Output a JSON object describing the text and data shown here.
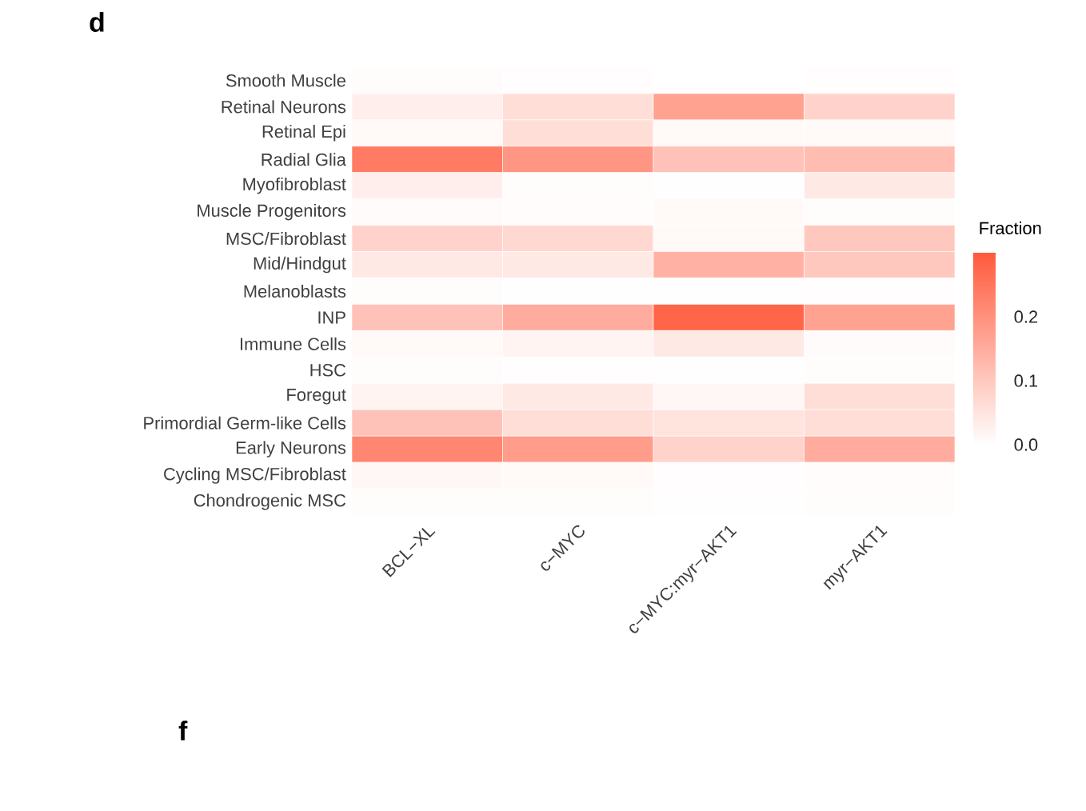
{
  "chart_data": {
    "type": "heatmap",
    "title": "d",
    "clabel": "Fraction",
    "annotations": [
      "f"
    ],
    "categories": [
      "BCL−XL",
      "c−MYC",
      "c−MYC:myr−AKT1",
      "myr−AKT1"
    ],
    "y_categories": [
      "Smooth Muscle",
      "Retinal Neurons",
      "Retinal Epi",
      "Radial Glia",
      "Myofibroblast",
      "Muscle Progenitors",
      "MSC/Fibroblast",
      "Mid/Hindgut",
      "Melanoblasts",
      "INP",
      "Immune Cells",
      "HSC",
      "Foregut",
      "Primordial Germ-like Cells",
      "Early Neurons",
      "Cycling MSC/Fibroblast",
      "Chondrogenic MSC"
    ],
    "cells": [
      [
        0.005,
        0.003,
        0.0,
        0.003
      ],
      [
        0.03,
        0.06,
        0.17,
        0.08
      ],
      [
        0.01,
        0.06,
        0.01,
        0.01
      ],
      [
        0.24,
        0.19,
        0.11,
        0.12
      ],
      [
        0.03,
        0.005,
        0.002,
        0.04
      ],
      [
        0.008,
        0.006,
        0.01,
        0.005
      ],
      [
        0.08,
        0.07,
        0.01,
        0.1
      ],
      [
        0.04,
        0.04,
        0.14,
        0.1
      ],
      [
        0.005,
        0.002,
        0.002,
        0.003
      ],
      [
        0.11,
        0.15,
        0.28,
        0.17
      ],
      [
        0.01,
        0.02,
        0.04,
        0.008
      ],
      [
        0.004,
        0.003,
        0.001,
        0.004
      ],
      [
        0.02,
        0.04,
        0.015,
        0.06
      ],
      [
        0.11,
        0.06,
        0.05,
        0.06
      ],
      [
        0.22,
        0.18,
        0.08,
        0.15
      ],
      [
        0.015,
        0.01,
        0.003,
        0.006
      ],
      [
        0.004,
        0.004,
        0.002,
        0.004
      ]
    ],
    "clim": [
      0,
      0.3
    ],
    "cticks": [
      {
        "value": 0,
        "label": "0.0"
      },
      {
        "value": 0.1,
        "label": "0.1"
      },
      {
        "value": 0.2,
        "label": "0.2"
      }
    ]
  }
}
